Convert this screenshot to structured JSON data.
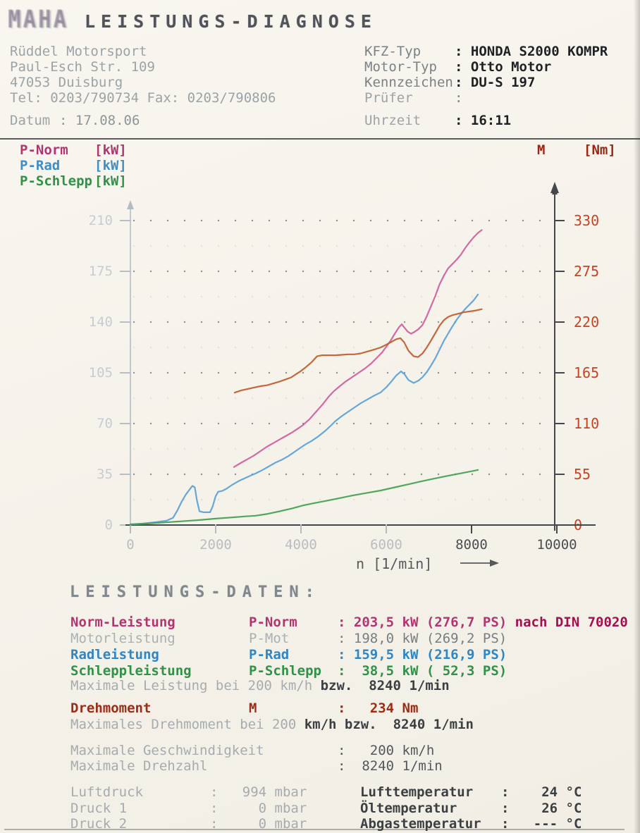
{
  "header": {
    "logo": "MAHA",
    "title": "LEISTUNGS-DIAGNOSE"
  },
  "shop": {
    "name": "Rüddel Motorsport",
    "street": "Paul-Esch Str. 109",
    "city": "47053 Duisburg",
    "phone": "Tel: 0203/790734 Fax: 0203/790806",
    "datum_label": "Datum",
    "datum_value": ": 17.08.06"
  },
  "vehicle": {
    "rows": [
      {
        "label": "KFZ-Typ",
        "value": ": HONDA S2000 KOMPR"
      },
      {
        "label": "Motor-Typ",
        "value": ": Otto Motor"
      },
      {
        "label": "Kennzeichen",
        "value": ": DU-S 197"
      },
      {
        "label": "Prüfer",
        "value": ":"
      }
    ],
    "uhrzeit_label": "Uhrzeit",
    "uhrzeit_value": ": 16:11"
  },
  "legend": {
    "left": [
      {
        "label": "P-Norm",
        "unit": "[kW]",
        "color": "#b23570"
      },
      {
        "label": "P-Rad",
        "unit": "[kW]",
        "color": "#3d8ec9"
      },
      {
        "label": "P-Schlepp",
        "unit": "[kW]",
        "color": "#2f9247"
      }
    ],
    "right": {
      "label": "M",
      "unit": "[Nm]",
      "color": "#9c2614"
    }
  },
  "chart_data": {
    "type": "line",
    "title": "Leistungs-Diagnose",
    "xlabel": "n [1/min]",
    "x_range": [
      0,
      10000
    ],
    "x_ticks": [
      0,
      2000,
      4000,
      6000,
      8000,
      10000
    ],
    "y_left": {
      "unit": "kW",
      "range": [
        0,
        210
      ],
      "ticks": [
        0,
        35,
        70,
        105,
        140,
        175,
        210
      ]
    },
    "y_right": {
      "unit": "Nm",
      "range": [
        0,
        330
      ],
      "ticks": [
        0,
        55,
        110,
        165,
        220,
        275,
        330
      ]
    },
    "grid": "dotted horizontal rows at each half tick step",
    "series": [
      {
        "name": "P-Norm",
        "unit": "kW",
        "axis": "left",
        "color": "#cf5d9d",
        "points": [
          [
            2430,
            40
          ],
          [
            2600,
            43
          ],
          [
            2750,
            45.5
          ],
          [
            2900,
            48
          ],
          [
            3050,
            51
          ],
          [
            3200,
            54
          ],
          [
            3350,
            56.5
          ],
          [
            3500,
            59
          ],
          [
            3650,
            61.5
          ],
          [
            3800,
            64
          ],
          [
            3950,
            67
          ],
          [
            4050,
            69
          ],
          [
            4200,
            73
          ],
          [
            4350,
            78
          ],
          [
            4500,
            83
          ],
          [
            4650,
            88.5
          ],
          [
            4760,
            92
          ],
          [
            4900,
            95.5
          ],
          [
            5050,
            99
          ],
          [
            5200,
            102
          ],
          [
            5350,
            105
          ],
          [
            5500,
            108
          ],
          [
            5650,
            111.5
          ],
          [
            5800,
            116
          ],
          [
            5900,
            119
          ],
          [
            6000,
            123
          ],
          [
            6100,
            127
          ],
          [
            6200,
            132
          ],
          [
            6300,
            136.5
          ],
          [
            6364,
            138.5
          ],
          [
            6430,
            136
          ],
          [
            6500,
            133.5
          ],
          [
            6578,
            132
          ],
          [
            6650,
            133
          ],
          [
            6750,
            135
          ],
          [
            6850,
            138
          ],
          [
            6950,
            144
          ],
          [
            7050,
            151
          ],
          [
            7150,
            158
          ],
          [
            7250,
            166
          ],
          [
            7350,
            172
          ],
          [
            7450,
            177
          ],
          [
            7550,
            180
          ],
          [
            7650,
            183
          ],
          [
            7750,
            186.5
          ],
          [
            7850,
            191
          ],
          [
            7950,
            195
          ],
          [
            8050,
            198.5
          ],
          [
            8150,
            201.5
          ],
          [
            8240,
            203.5
          ]
        ]
      },
      {
        "name": "P-Rad",
        "unit": "kW",
        "axis": "left",
        "color": "#5a9fd6",
        "points": [
          [
            0,
            0.5
          ],
          [
            300,
            1
          ],
          [
            600,
            2
          ],
          [
            850,
            3
          ],
          [
            1000,
            5
          ],
          [
            1100,
            10
          ],
          [
            1200,
            16
          ],
          [
            1300,
            21
          ],
          [
            1400,
            25
          ],
          [
            1455,
            27
          ],
          [
            1510,
            26
          ],
          [
            1560,
            17
          ],
          [
            1620,
            9.5
          ],
          [
            1720,
            8.8
          ],
          [
            1868,
            8.8
          ],
          [
            1930,
            13
          ],
          [
            2000,
            20
          ],
          [
            2060,
            23
          ],
          [
            2150,
            23.5
          ],
          [
            2250,
            25
          ],
          [
            2400,
            28
          ],
          [
            2550,
            30.5
          ],
          [
            2700,
            32.5
          ],
          [
            2850,
            34.5
          ],
          [
            2930,
            35.5
          ],
          [
            3100,
            38
          ],
          [
            3250,
            40.5
          ],
          [
            3400,
            43
          ],
          [
            3550,
            45
          ],
          [
            3700,
            47.5
          ],
          [
            3850,
            50.5
          ],
          [
            4000,
            53.5
          ],
          [
            4100,
            55.5
          ],
          [
            4250,
            58
          ],
          [
            4400,
            61
          ],
          [
            4550,
            64.5
          ],
          [
            4700,
            68.5
          ],
          [
            4800,
            71.5
          ],
          [
            4950,
            75
          ],
          [
            5100,
            78
          ],
          [
            5250,
            81
          ],
          [
            5400,
            84
          ],
          [
            5550,
            86.5
          ],
          [
            5700,
            89
          ],
          [
            5870,
            91.5
          ],
          [
            6000,
            95
          ],
          [
            6120,
            99
          ],
          [
            6230,
            103
          ],
          [
            6347,
            106
          ],
          [
            6430,
            104
          ],
          [
            6520,
            100
          ],
          [
            6645,
            98
          ],
          [
            6750,
            99.5
          ],
          [
            6850,
            102
          ],
          [
            6950,
            105.5
          ],
          [
            7050,
            110
          ],
          [
            7150,
            115
          ],
          [
            7250,
            121
          ],
          [
            7350,
            127
          ],
          [
            7450,
            132
          ],
          [
            7550,
            137
          ],
          [
            7650,
            141.5
          ],
          [
            7750,
            145.5
          ],
          [
            7850,
            149
          ],
          [
            7950,
            152
          ],
          [
            8050,
            155
          ],
          [
            8150,
            159
          ]
        ]
      },
      {
        "name": "P-Schlepp",
        "unit": "kW",
        "axis": "left",
        "color": "#44a050",
        "points": [
          [
            0,
            0.3
          ],
          [
            400,
            1
          ],
          [
            800,
            1.8
          ],
          [
            1200,
            2.6
          ],
          [
            1600,
            3.4
          ],
          [
            2000,
            4.4
          ],
          [
            2400,
            5.3
          ],
          [
            2700,
            6
          ],
          [
            2930,
            6.4
          ],
          [
            3200,
            7.6
          ],
          [
            3500,
            9.5
          ],
          [
            3800,
            11.5
          ],
          [
            4050,
            13.5
          ],
          [
            4300,
            15
          ],
          [
            4600,
            16.7
          ],
          [
            4900,
            18.5
          ],
          [
            5200,
            20.3
          ],
          [
            5500,
            21.9
          ],
          [
            5870,
            23.8
          ],
          [
            6200,
            26
          ],
          [
            6500,
            28
          ],
          [
            6800,
            30
          ],
          [
            7100,
            31.9
          ],
          [
            7400,
            33.7
          ],
          [
            7700,
            35.4
          ],
          [
            8000,
            37.1
          ],
          [
            8150,
            38
          ]
        ]
      },
      {
        "name": "M",
        "unit": "Nm",
        "axis": "right",
        "color": "#bf5c2c",
        "points": [
          [
            2446,
            143.5
          ],
          [
            2600,
            146
          ],
          [
            2750,
            147.5
          ],
          [
            2900,
            149
          ],
          [
            3050,
            150.5
          ],
          [
            3200,
            151.5
          ],
          [
            3350,
            153.5
          ],
          [
            3500,
            155.5
          ],
          [
            3650,
            158
          ],
          [
            3770,
            160
          ],
          [
            3900,
            164
          ],
          [
            4000,
            167
          ],
          [
            4100,
            170.5
          ],
          [
            4250,
            176.5
          ],
          [
            4380,
            183
          ],
          [
            4500,
            184
          ],
          [
            4650,
            184
          ],
          [
            4800,
            184
          ],
          [
            4950,
            184.5
          ],
          [
            5100,
            185
          ],
          [
            5250,
            185
          ],
          [
            5400,
            186
          ],
          [
            5550,
            188
          ],
          [
            5700,
            190
          ],
          [
            5870,
            192.5
          ],
          [
            6000,
            195.5
          ],
          [
            6120,
            198.5
          ],
          [
            6240,
            201.5
          ],
          [
            6330,
            202.5
          ],
          [
            6420,
            198
          ],
          [
            6520,
            189
          ],
          [
            6640,
            183
          ],
          [
            6744,
            182
          ],
          [
            6850,
            186
          ],
          [
            6950,
            192.5
          ],
          [
            7050,
            200
          ],
          [
            7150,
            208
          ],
          [
            7250,
            216
          ],
          [
            7350,
            222
          ],
          [
            7450,
            225.5
          ],
          [
            7550,
            227.5
          ],
          [
            7686,
            229
          ],
          [
            7800,
            230.5
          ],
          [
            7950,
            231.5
          ],
          [
            8100,
            232.5
          ],
          [
            8240,
            234
          ]
        ]
      }
    ]
  },
  "results": {
    "heading": "LEISTUNGS-DATEN:",
    "power_rows": [
      {
        "label": "Norm-Leistung",
        "symbol": "P-Norm",
        "value": ": 203,5 kW (276,7 PS)",
        "suffix": " nach DIN 70020"
      },
      {
        "label": "Motorleistung",
        "symbol": "P-Mot",
        "value": ": 198,0 kW (269,2 PS)",
        "suffix": ""
      },
      {
        "label": "Radleistung",
        "symbol": "P-Rad",
        "value": ": 159,5 kW (216,9 PS)",
        "suffix": ""
      },
      {
        "label": "Schleppleistung",
        "symbol": "P-Schlepp",
        "value": ":  38,5 kW ( 52,3 PS)",
        "suffix": ""
      }
    ],
    "power_note": {
      "faint": "Maximale Leistung bei 200 km/h ",
      "dark": "bzw.  8240 1/min"
    },
    "torque_row": {
      "label": "Drehmoment",
      "symbol": "M",
      "value": ":   234 Nm"
    },
    "torque_note": {
      "faint": "Maximales Drehmoment bei 200 ",
      "dark": "km/h bzw.  8240 1/min"
    },
    "limits": [
      {
        "label": "Maximale Geschwindigkeit",
        "value": ":   200 km/h"
      },
      {
        "label": "Maximale Drehzahl",
        "value": ":  8240 1/min"
      }
    ],
    "environment": {
      "left": [
        {
          "label": "Luftdruck",
          "value": ":   994 mbar"
        },
        {
          "label": "Druck 1",
          "value": ":     0 mbar"
        },
        {
          "label": "Druck 2",
          "value": ":     0 mbar"
        }
      ],
      "right": [
        {
          "label": "Lufttemperatur",
          "value": ":    24 °C"
        },
        {
          "label": "Öltemperatur",
          "value": ":    26 °C"
        },
        {
          "label": "Abgastemperatur",
          "value": ":   --- °C"
        }
      ]
    }
  }
}
